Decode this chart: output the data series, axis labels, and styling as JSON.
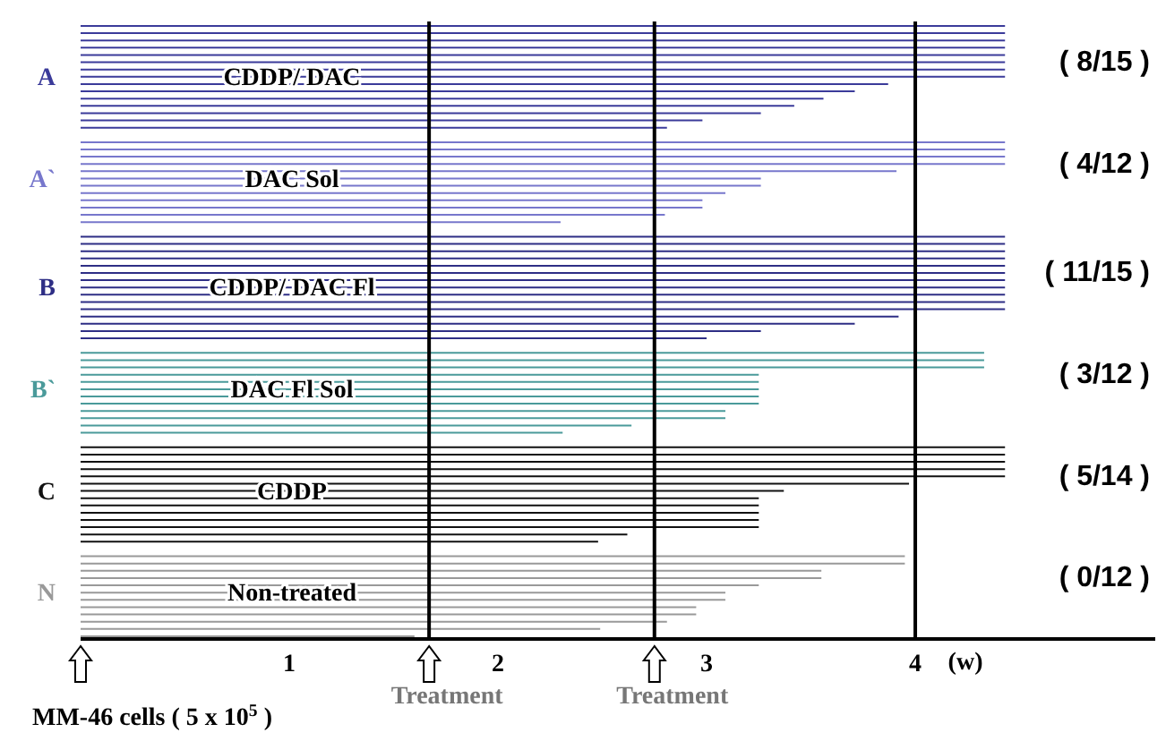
{
  "chart_data": {
    "type": "bar",
    "orientation": "horizontal",
    "categories": [
      null,
      null,
      null,
      null,
      null,
      null,
      null,
      "A",
      null,
      null,
      null,
      null,
      null,
      null,
      null,
      null,
      null,
      null,
      null,
      null,
      null,
      "A`",
      null,
      null,
      null,
      null,
      null,
      null,
      null,
      null,
      null,
      null,
      null,
      null,
      null,
      null,
      "B",
      null,
      null,
      null,
      null,
      null,
      null,
      null,
      null,
      null,
      null,
      null,
      null,
      null,
      "B`",
      null,
      null,
      null,
      null,
      null,
      null,
      null,
      null,
      null,
      null,
      null,
      null,
      null,
      "C",
      null,
      null,
      null,
      null,
      null,
      null,
      null,
      null,
      null,
      null,
      null,
      null,
      null,
      "N",
      null,
      null,
      null,
      null,
      null,
      null
    ],
    "values": [
      4.43,
      4.43,
      4.43,
      4.43,
      4.43,
      4.43,
      4.43,
      4.43,
      3.87,
      3.71,
      3.56,
      3.42,
      3.26,
      2.98,
      2.81,
      null,
      4.43,
      4.43,
      4.43,
      4.43,
      3.91,
      3.26,
      3.26,
      3.09,
      2.98,
      2.98,
      2.8,
      2.3,
      null,
      4.43,
      4.43,
      4.43,
      4.43,
      4.43,
      4.43,
      4.43,
      4.43,
      4.43,
      4.43,
      4.43,
      3.92,
      3.71,
      3.26,
      3.0,
      null,
      4.33,
      4.33,
      4.33,
      3.25,
      3.25,
      3.25,
      3.25,
      3.25,
      3.09,
      3.09,
      2.64,
      2.31,
      null,
      4.43,
      4.43,
      4.43,
      4.43,
      4.43,
      3.97,
      3.37,
      3.25,
      3.25,
      3.25,
      3.25,
      3.25,
      2.62,
      2.48,
      null,
      3.95,
      3.95,
      3.55,
      3.55,
      3.25,
      3.09,
      3.09,
      2.95,
      2.95,
      2.81,
      2.49,
      1.6
    ],
    "colors": [
      "#3b3b9a",
      "#3b3b9a",
      "#3b3b9a",
      "#3b3b9a",
      "#3b3b9a",
      "#3b3b9a",
      "#3b3b9a",
      "#3b3b9a",
      "#3b3b9a",
      "#3b3b9a",
      "#3b3b9a",
      "#3b3b9a",
      "#3b3b9a",
      "#3b3b9a",
      "#3b3b9a",
      null,
      "#7777cc",
      "#7777cc",
      "#7777cc",
      "#7777cc",
      "#7777cc",
      "#7777cc",
      "#7777cc",
      "#7777cc",
      "#7777cc",
      "#7777cc",
      "#7777cc",
      "#7777cc",
      null,
      "#2e2e85",
      "#2e2e85",
      "#2e2e85",
      "#2e2e85",
      "#2e2e85",
      "#2e2e85",
      "#2e2e85",
      "#2e2e85",
      "#2e2e85",
      "#2e2e85",
      "#2e2e85",
      "#2e2e85",
      "#2e2e85",
      "#2e2e85",
      "#2e2e85",
      null,
      "#4a9a9a",
      "#4a9a9a",
      "#4a9a9a",
      "#4a9a9a",
      "#4a9a9a",
      "#4a9a9a",
      "#4a9a9a",
      "#4a9a9a",
      "#4a9a9a",
      "#4a9a9a",
      "#4a9a9a",
      "#4a9a9a",
      null,
      "#111111",
      "#111111",
      "#111111",
      "#111111",
      "#111111",
      "#111111",
      "#111111",
      "#111111",
      "#111111",
      "#111111",
      "#111111",
      "#111111",
      "#111111",
      "#111111",
      null,
      "#999999",
      "#999999",
      "#999999",
      "#999999",
      "#999999",
      "#999999",
      "#999999",
      "#999999",
      "#999999",
      "#999999",
      "#999999",
      "#999999"
    ],
    "xlim": [
      0,
      5.15
    ],
    "xticks": [
      1,
      2,
      3,
      4
    ],
    "xlabel": "(w)",
    "ref_lines": [
      {
        "axis": "x",
        "value": 1.67,
        "label": "Treatment"
      },
      {
        "axis": "x",
        "value": 2.75,
        "label": "Treatment"
      },
      {
        "axis": "x",
        "value": 4
      }
    ],
    "annotations": [
      "CDDP/ DAC",
      "DAC Sol",
      "CDDP/ DAC Fl",
      "DAC Fl Sol",
      "CDDP",
      "Non-treated",
      "( 8/15  )",
      "( 4/12 )",
      "( 11/15 )",
      "( 3/12 )",
      "( 5/14 )",
      "( 0/12 )",
      "MM-46 cells  ( 5 x 10$^{5}$ )"
    ]
  }
}
